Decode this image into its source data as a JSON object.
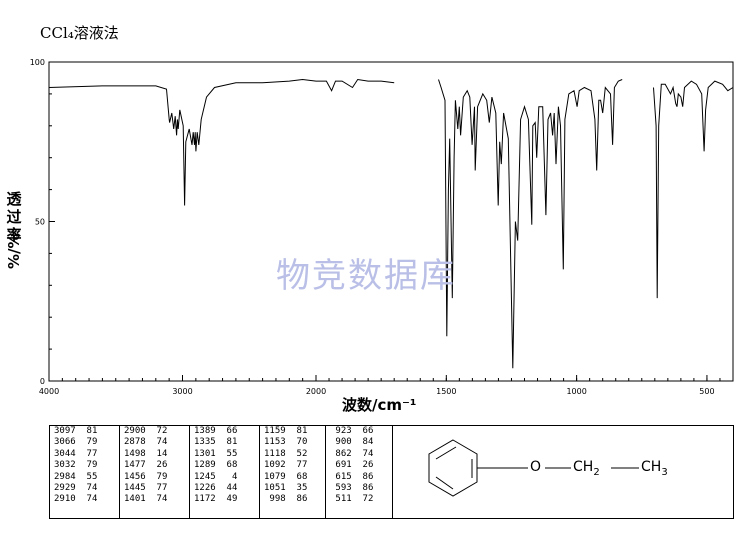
{
  "title": "CCl₄溶液法",
  "watermark": "物竞数据库",
  "chart_data": {
    "type": "line",
    "ylabel": "透过率%/%",
    "xlabel": "波数/cm⁻¹",
    "xlim": [
      4000,
      400
    ],
    "ylim": [
      0,
      100
    ],
    "x_ticks": [
      4000,
      3000,
      2000,
      1500,
      1000,
      500
    ],
    "y_ticks": [
      0,
      50,
      100
    ],
    "axis_note": "x axis compressed by factor of 2 above 2000 cm-1",
    "spectrum": [
      [
        4000,
        92
      ],
      [
        3600,
        92.5
      ],
      [
        3200,
        92.5
      ],
      [
        3120,
        91.5
      ],
      [
        3100,
        82
      ],
      [
        3097,
        81
      ],
      [
        3080,
        84
      ],
      [
        3066,
        79
      ],
      [
        3055,
        83
      ],
      [
        3044,
        77
      ],
      [
        3038,
        82
      ],
      [
        3032,
        79
      ],
      [
        3020,
        85
      ],
      [
        2995,
        80
      ],
      [
        2984,
        55
      ],
      [
        2975,
        75
      ],
      [
        2950,
        79
      ],
      [
        2929,
        74
      ],
      [
        2920,
        78
      ],
      [
        2910,
        74
      ],
      [
        2905,
        78
      ],
      [
        2900,
        72
      ],
      [
        2890,
        78
      ],
      [
        2878,
        74
      ],
      [
        2860,
        82
      ],
      [
        2820,
        89
      ],
      [
        2760,
        92
      ],
      [
        2600,
        93.5
      ],
      [
        2400,
        93.5
      ],
      [
        2200,
        94
      ],
      [
        2100,
        94.5
      ],
      [
        2000,
        94
      ],
      [
        1960,
        94
      ],
      [
        1940,
        91
      ],
      [
        1925,
        94
      ],
      [
        1900,
        94
      ],
      [
        1860,
        92
      ],
      [
        1840,
        94.5
      ],
      [
        1800,
        94
      ],
      [
        1750,
        94
      ],
      [
        1700,
        93.5
      ],
      [
        1530,
        94.5
      ],
      [
        1520,
        92
      ],
      [
        1505,
        88
      ],
      [
        1498,
        14
      ],
      [
        1492,
        60
      ],
      [
        1487,
        76
      ],
      [
        1477,
        26
      ],
      [
        1470,
        70
      ],
      [
        1465,
        88
      ],
      [
        1456,
        79
      ],
      [
        1450,
        86
      ],
      [
        1445,
        77
      ],
      [
        1435,
        89
      ],
      [
        1420,
        91
      ],
      [
        1410,
        89
      ],
      [
        1401,
        74
      ],
      [
        1392,
        86
      ],
      [
        1389,
        66
      ],
      [
        1380,
        86
      ],
      [
        1360,
        90
      ],
      [
        1345,
        88
      ],
      [
        1335,
        81
      ],
      [
        1325,
        89
      ],
      [
        1310,
        84
      ],
      [
        1301,
        55
      ],
      [
        1295,
        75
      ],
      [
        1289,
        68
      ],
      [
        1280,
        84
      ],
      [
        1262,
        76
      ],
      [
        1245,
        4
      ],
      [
        1235,
        50
      ],
      [
        1226,
        44
      ],
      [
        1215,
        82
      ],
      [
        1200,
        86
      ],
      [
        1185,
        82
      ],
      [
        1172,
        49
      ],
      [
        1168,
        80
      ],
      [
        1159,
        81
      ],
      [
        1153,
        70
      ],
      [
        1145,
        86
      ],
      [
        1130,
        86
      ],
      [
        1118,
        52
      ],
      [
        1110,
        82
      ],
      [
        1100,
        84
      ],
      [
        1092,
        77
      ],
      [
        1086,
        84
      ],
      [
        1079,
        68
      ],
      [
        1070,
        86
      ],
      [
        1062,
        80
      ],
      [
        1051,
        35
      ],
      [
        1045,
        82
      ],
      [
        1030,
        90
      ],
      [
        1010,
        91
      ],
      [
        998,
        86
      ],
      [
        990,
        91
      ],
      [
        970,
        92
      ],
      [
        945,
        91
      ],
      [
        930,
        82
      ],
      [
        923,
        66
      ],
      [
        915,
        88
      ],
      [
        908,
        88
      ],
      [
        900,
        84
      ],
      [
        890,
        92
      ],
      [
        870,
        90
      ],
      [
        862,
        74
      ],
      [
        855,
        92
      ],
      [
        840,
        94
      ],
      [
        825,
        94.5
      ],
      [
        705,
        92
      ],
      [
        695,
        80
      ],
      [
        691,
        26
      ],
      [
        685,
        80
      ],
      [
        675,
        93
      ],
      [
        660,
        93
      ],
      [
        640,
        90
      ],
      [
        630,
        92
      ],
      [
        620,
        87
      ],
      [
        615,
        86
      ],
      [
        610,
        90
      ],
      [
        600,
        89
      ],
      [
        593,
        86
      ],
      [
        586,
        92
      ],
      [
        560,
        94
      ],
      [
        540,
        93
      ],
      [
        520,
        90
      ],
      [
        511,
        72
      ],
      [
        505,
        85
      ],
      [
        495,
        92
      ],
      [
        470,
        94
      ],
      [
        440,
        93
      ],
      [
        420,
        91
      ],
      [
        400,
        92
      ]
    ],
    "gaps": [
      [
        1700,
        1530
      ],
      [
        825,
        705
      ]
    ]
  },
  "peak_table": [
    [
      [
        "3097",
        "81"
      ],
      [
        "3066",
        "79"
      ],
      [
        "3044",
        "77"
      ],
      [
        "3032",
        "79"
      ],
      [
        "2984",
        "55"
      ],
      [
        "2929",
        "74"
      ],
      [
        "2910",
        "74"
      ]
    ],
    [
      [
        "2900",
        "72"
      ],
      [
        "2878",
        "74"
      ],
      [
        "1498",
        "14"
      ],
      [
        "1477",
        "26"
      ],
      [
        "1456",
        "79"
      ],
      [
        "1445",
        "77"
      ],
      [
        "1401",
        "74"
      ]
    ],
    [
      [
        "1389",
        "66"
      ],
      [
        "1335",
        "81"
      ],
      [
        "1301",
        "55"
      ],
      [
        "1289",
        "68"
      ],
      [
        "1245",
        "4"
      ],
      [
        "1226",
        "44"
      ],
      [
        "1172",
        "49"
      ]
    ],
    [
      [
        "1159",
        "81"
      ],
      [
        "1153",
        "70"
      ],
      [
        "1118",
        "52"
      ],
      [
        "1092",
        "77"
      ],
      [
        "1079",
        "68"
      ],
      [
        "1051",
        "35"
      ],
      [
        "998",
        "86"
      ]
    ],
    [
      [
        "923",
        "66"
      ],
      [
        "900",
        "84"
      ],
      [
        "862",
        "74"
      ],
      [
        "691",
        "26"
      ],
      [
        "615",
        "86"
      ],
      [
        "593",
        "86"
      ],
      [
        "511",
        "72"
      ]
    ]
  ],
  "structure": {
    "o_label": "O",
    "ch2_label": "CH",
    "ch2_sub": "2",
    "ch3_label": "CH",
    "ch3_sub": "3"
  }
}
